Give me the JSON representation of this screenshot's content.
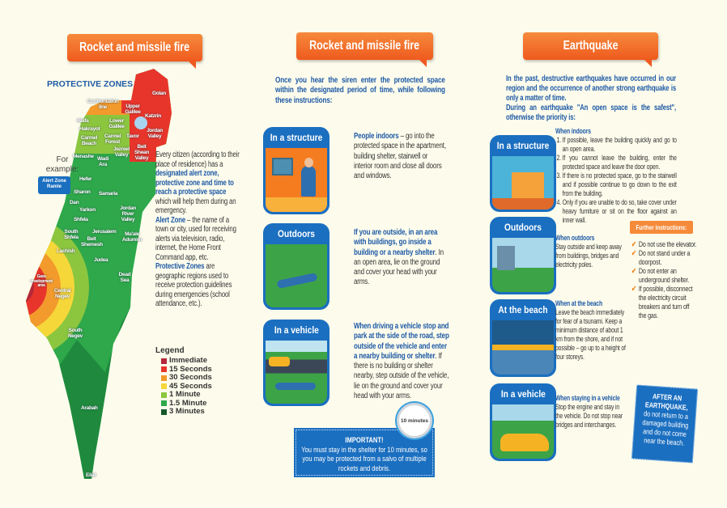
{
  "left": {
    "banner": "Rocket and missile fire",
    "map_title": "PROTECTIVE ZONES MAP",
    "example_label": "For example:",
    "example_bubble": "Alert Zone Ramle",
    "map_labels": [
      "Golan",
      "Confrontation line",
      "Upper Galilee",
      "Katzrin",
      "Haifa",
      "Lower Galilee",
      "Hakrayot",
      "Carmel Forest",
      "Carmel Beach",
      "Tavor",
      "Jordan Valley",
      "Jezreel Valley",
      "Beit Shean Valley",
      "Menashe",
      "Wadi Ara",
      "Hefer",
      "Sharon",
      "Samaria",
      "Dan",
      "Yarkon",
      "Shfela",
      "Jordan River Valley",
      "South Shfela",
      "Jerusalem",
      "Beit Shemesh",
      "Ma'ale Adumim",
      "Lachish",
      "Judea",
      "Gaza envelopment area",
      "Dead Sea",
      "Central Negev",
      "South Negev",
      "Arabah",
      "Eilat"
    ],
    "intro_pre": "Every citizen (according to their place of residence) has a ",
    "intro_bold": "designated alert zone, protective zone and time to reach a protective space",
    "intro_post": " which will help them during an emergency.",
    "alert_zone_term": "Alert Zone",
    "alert_zone_def": " – the name of a town or city, used for receiving alerts via television, radio, internet, the Home Front Command app, etc.",
    "protective_term": "Protective Zones",
    "protective_def": " are geographic regions used to receive protection guidelines during emergencies (school attendance, etc.).",
    "legend_title": "Legend",
    "legend": [
      {
        "label": "Immediate",
        "color": "#b3283a"
      },
      {
        "label": "15 Seconds",
        "color": "#e8352b"
      },
      {
        "label": "30 Seconds",
        "color": "#f39a2c"
      },
      {
        "label": "45 Seconds",
        "color": "#f6d73a"
      },
      {
        "label": "1 Minute",
        "color": "#8cc63f"
      },
      {
        "label": "1.5 Minute",
        "color": "#2ea84a"
      },
      {
        "label": "3 Minutes",
        "color": "#15592b"
      }
    ]
  },
  "middle": {
    "banner": "Rocket and missile fire",
    "intro": "Once you hear the siren enter the protected space within the designated period of time, while following these instructions:",
    "cards": [
      {
        "title": "In a structure",
        "bold": "People indoors",
        "text": " – go into the protected space in the apartment, building shelter, stairwell or interior room and close all doors and windows."
      },
      {
        "title": "Outdoors",
        "bold": "If you are outside, in an area with buildings, go inside a building or a nearby shelter",
        "text": ". In an open area, lie on the ground and cover your head with your arms."
      },
      {
        "title": "In a vehicle",
        "bold": "When driving a vehicle stop and park at the side of the road, step outside of the vehicle and enter a nearby building or shelter",
        "text": ". If there is no building or shelter nearby, step outside of the vehicle, lie on the ground and cover your head with your arms."
      }
    ],
    "important_title": "IMPORTANT!",
    "important_text": "You must stay in the shelter for 10 minutes, so you may be protected from a salvo of multiple rockets and debris.",
    "timer_label": "10 minutes"
  },
  "right": {
    "banner": "Earthquake",
    "intro1": "In the past, destructive earthquakes have occurred in our region and the occurrence of another strong earthquake is only a matter of time.",
    "intro2": "During an earthquake \"An open space is the safest\", otherwise the priority is:",
    "cards": [
      "In a structure",
      "Outdoors",
      "At the beach",
      "In a vehicle"
    ],
    "indoors_title": "When indoors",
    "indoors_steps": [
      "If possible, leave the building quickly and go to an open area.",
      "If you cannot leave the building, enter the protected space and leave the door open.",
      "If there is no protected space, go to the stairwell and if possible continue to go down to the exit from the building.",
      "Only if you are unable to do so, take cover under heavy furniture or sit on the floor against an inner wall."
    ],
    "outdoors_title": "When outdoors",
    "outdoors_text": "Stay outside and keep away from buildings, bridges and electricity poles.",
    "beach_title": "When at the beach",
    "beach_text": "Leave the beach immediately for fear of a tsunami. Keep a minimum distance of about 1 km from the shore, and if not possible – go up to a height of four storeys.",
    "vehicle_title": "When staying in a vehicle",
    "vehicle_text": "Stop the engine and stay in the vehicle. Do not stop near bridges and interchanges.",
    "further_title": "Further instructions:",
    "further": [
      "Do not use the elevator.",
      "Do not stand under a doorpost.",
      "Do not enter an underground shelter.",
      "If possible, disconnect the electricity circuit breakers and turn off the gas."
    ],
    "after_title": "AFTER AN EARTHQUAKE,",
    "after_text": "do not return to a damaged building and do not come near the beach."
  }
}
